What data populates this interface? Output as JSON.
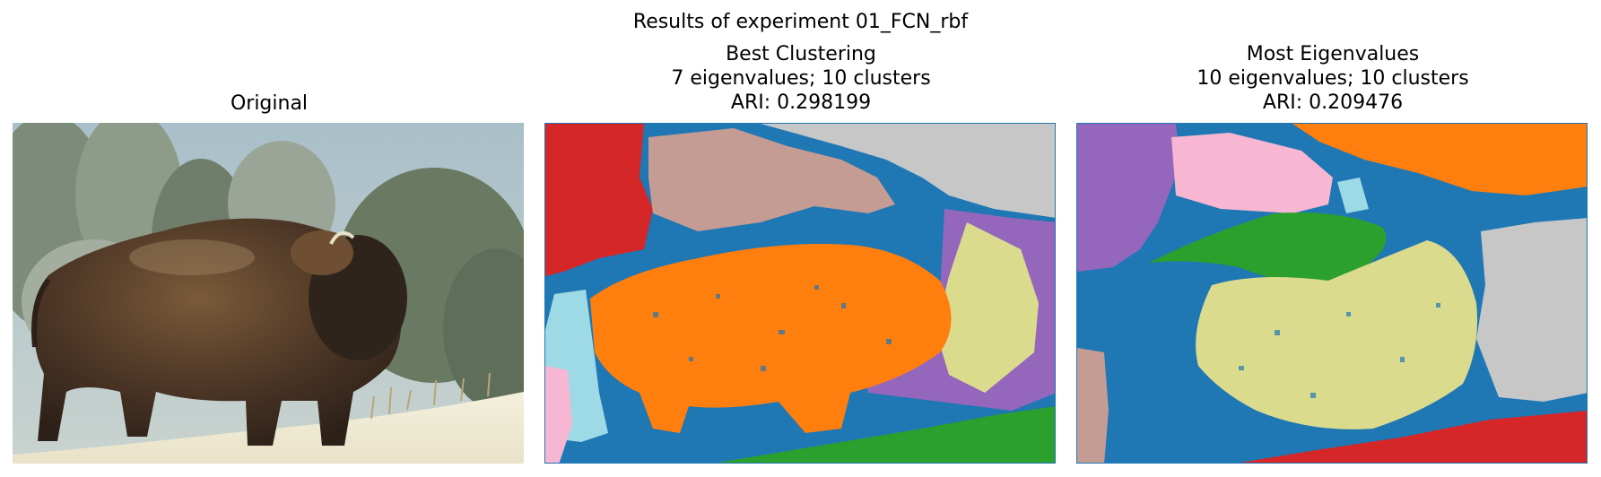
{
  "figure": {
    "suptitle": "Results of experiment 01_FCN_rbf"
  },
  "panels": [
    {
      "title_lines": [
        "Original"
      ]
    },
    {
      "title_lines": [
        "Best Clustering",
        "7 eigenvalues; 10 clusters",
        "ARI: 0.298199"
      ]
    },
    {
      "title_lines": [
        "Most Eigenvalues",
        "10 eigenvalues; 10 clusters",
        "ARI: 0.209476"
      ]
    }
  ],
  "palette": {
    "blue": "#1f77b4",
    "orange": "#ff7f0e",
    "green": "#2ca02c",
    "red": "#d62728",
    "purple": "#9467bd",
    "brown": "#c49c94",
    "pink": "#f7b6d2",
    "gray": "#c7c7c7",
    "olive": "#dbdb8d",
    "cyan": "#9edae5"
  }
}
